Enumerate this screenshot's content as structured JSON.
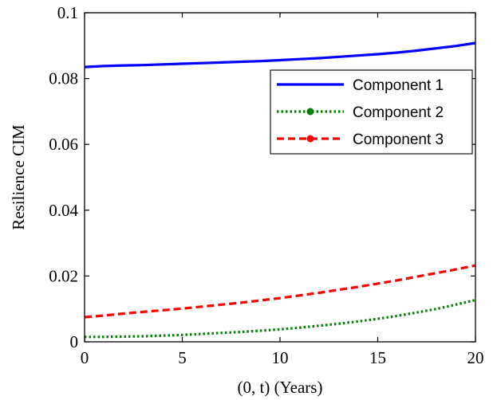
{
  "chart_data": {
    "type": "line",
    "xlabel": "(0,  t) (Years)",
    "ylabel": "Resilience CIM",
    "xlim": [
      0,
      20
    ],
    "ylim": [
      0,
      0.1
    ],
    "xticks": [
      "0",
      "5",
      "10",
      "15",
      "20"
    ],
    "yticks": [
      "0",
      "0.02",
      "0.04",
      "0.06",
      "0.08",
      "0.1"
    ],
    "grid": false,
    "legend_position": "top-right",
    "x": [
      0,
      1,
      2,
      3,
      4,
      5,
      6,
      7,
      8,
      9,
      10,
      11,
      12,
      13,
      14,
      15,
      16,
      17,
      18,
      19,
      20
    ],
    "series": [
      {
        "name": "Component 1",
        "color": "#0000ff",
        "style": "solid",
        "values": [
          0.0835,
          0.0838,
          0.084,
          0.0841,
          0.0843,
          0.0845,
          0.0847,
          0.0849,
          0.0851,
          0.0853,
          0.0856,
          0.0859,
          0.0862,
          0.0866,
          0.087,
          0.0874,
          0.0879,
          0.0885,
          0.0892,
          0.0899,
          0.0908
        ]
      },
      {
        "name": "Component 2",
        "color": "#008000",
        "style": "dotted",
        "values": [
          0.0015,
          0.0015,
          0.0016,
          0.0017,
          0.0019,
          0.0021,
          0.0024,
          0.0027,
          0.003,
          0.0034,
          0.0038,
          0.0043,
          0.0049,
          0.0055,
          0.0062,
          0.007,
          0.0079,
          0.0089,
          0.01,
          0.0113,
          0.0127
        ]
      },
      {
        "name": "Component 3",
        "color": "#ff0000",
        "style": "dashed",
        "values": [
          0.0075,
          0.008,
          0.0086,
          0.0091,
          0.0096,
          0.0101,
          0.0107,
          0.0113,
          0.0119,
          0.0126,
          0.0133,
          0.0141,
          0.0149,
          0.0158,
          0.0167,
          0.0177,
          0.0187,
          0.0198,
          0.0209,
          0.022,
          0.0232
        ]
      }
    ]
  }
}
